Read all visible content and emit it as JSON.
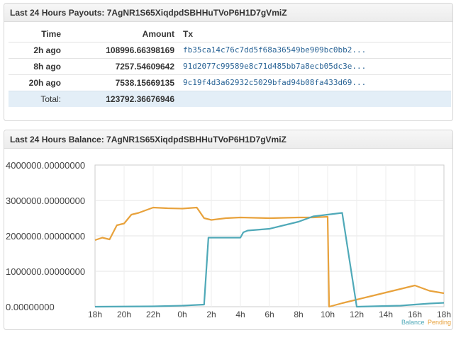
{
  "payouts_panel": {
    "title": "Last 24 Hours Payouts: 7AgNR1S65XiqdpdSBHHuTVoP6H1D7gVmiZ",
    "columns": [
      "Time",
      "Amount",
      "Tx"
    ],
    "rows": [
      {
        "time": "2h ago",
        "amount": "108996.66398169",
        "tx": "fb35ca14c76c7dd5f68a36549be909bc0bb2..."
      },
      {
        "time": "8h ago",
        "amount": "7257.54609642",
        "tx": "91d2077c99589e8c71d485bb7a8ecb05dc3e..."
      },
      {
        "time": "20h ago",
        "amount": "7538.15669135",
        "tx": "9c19f4d3a62932c5029bfad94b08fa433d69..."
      }
    ],
    "total_label": "Total:",
    "total_amount": "123792.36676946"
  },
  "balance_panel": {
    "title": "Last 24 Hours Balance: 7AgNR1S65XiqdpdSBHHuTVoP6H1D7gVmiZ"
  },
  "chart_data": {
    "type": "line",
    "title": "",
    "xlabel": "",
    "ylabel": "",
    "ylim": [
      0,
      4000000
    ],
    "y_ticks": [
      "0.00000000",
      "1000000.00000000",
      "2000000.00000000",
      "3000000.00000000",
      "4000000.00000000"
    ],
    "x_ticks": [
      "18h",
      "20h",
      "22h",
      "0h",
      "2h",
      "4h",
      "6h",
      "8h",
      "10h",
      "12h",
      "14h",
      "16h",
      "18h"
    ],
    "xlim": [
      0,
      24
    ],
    "grid": true,
    "legend_position": "bottom-right",
    "series": [
      {
        "name": "Balance",
        "color": "#4fa9b8",
        "x": [
          0,
          4,
          6,
          7.5,
          7.8,
          8.5,
          10,
          10.2,
          10.5,
          12,
          14,
          15,
          16,
          17,
          18,
          19,
          20,
          21,
          22,
          23,
          24
        ],
        "y": [
          0,
          10000,
          30000,
          60000,
          1950000,
          1950000,
          1950000,
          2100000,
          2150000,
          2200000,
          2400000,
          2550000,
          2600000,
          2650000,
          0,
          10000,
          20000,
          30000,
          60000,
          90000,
          110000
        ]
      },
      {
        "name": "Pending",
        "color": "#e8a23c",
        "x": [
          0,
          0.5,
          1,
          1.5,
          2,
          2.5,
          3,
          4,
          5,
          6,
          7,
          7.5,
          8,
          9,
          10,
          12,
          14,
          15,
          16,
          16.1,
          17,
          18,
          19,
          20,
          21,
          22,
          23,
          24
        ],
        "y": [
          1880000,
          1950000,
          1900000,
          2300000,
          2350000,
          2600000,
          2650000,
          2800000,
          2780000,
          2770000,
          2800000,
          2500000,
          2450000,
          2500000,
          2520000,
          2500000,
          2520000,
          2520000,
          2540000,
          0,
          100000,
          200000,
          300000,
          400000,
          500000,
          600000,
          450000,
          380000
        ]
      }
    ]
  }
}
